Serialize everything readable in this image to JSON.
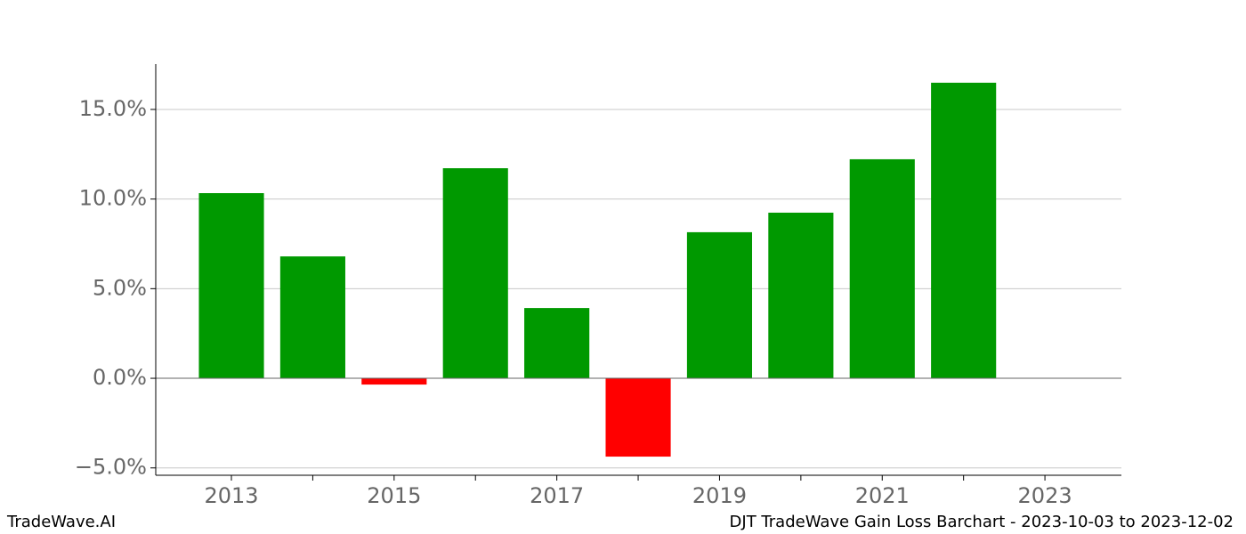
{
  "chart_data": {
    "type": "bar",
    "x": [
      2013,
      2014,
      2015,
      2016,
      2017,
      2018,
      2019,
      2020,
      2021,
      2022
    ],
    "values": [
      10.33,
      6.8,
      -0.35,
      11.72,
      3.92,
      -4.37,
      8.15,
      9.24,
      12.22,
      16.49
    ],
    "positive_color": "#009900",
    "negative_color": "#ff0000",
    "xlim": [
      2012.07,
      2023.94
    ],
    "xticks": [
      2013,
      2015,
      2017,
      2019,
      2021,
      2023
    ],
    "xminor_ticks": [
      2014,
      2016,
      2018,
      2020,
      2022
    ],
    "ylim": [
      -5.41,
      17.53
    ],
    "yticks": [
      {
        "value": -5,
        "label": "−5.0%"
      },
      {
        "value": 0,
        "label": "0.0%"
      },
      {
        "value": 5,
        "label": "5.0%"
      },
      {
        "value": 10,
        "label": "10.0%"
      },
      {
        "value": 15,
        "label": "15.0%"
      }
    ],
    "grid": true,
    "footer_left": "TradeWave.AI",
    "footer_right": "DJT TradeWave Gain Loss Barchart - 2023-10-03 to 2023-12-02"
  }
}
